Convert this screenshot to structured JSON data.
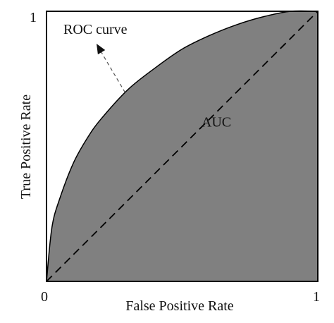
{
  "chart_data": {
    "type": "area",
    "xlabel": "False Positive Rate",
    "ylabel": "True Positive Rate",
    "xlim": [
      0,
      1
    ],
    "ylim": [
      0,
      1
    ],
    "x_ticks": [
      "0",
      "1"
    ],
    "y_ticks": [
      "1"
    ],
    "grid": false,
    "series": [
      {
        "name": "ROC curve",
        "style": "solid",
        "x": [
          0,
          0.02,
          0.05,
          0.1,
          0.15,
          0.2,
          0.3,
          0.4,
          0.5,
          0.6,
          0.7,
          0.8,
          0.9,
          1.0
        ],
        "y": [
          0,
          0.2,
          0.31,
          0.44,
          0.53,
          0.6,
          0.71,
          0.79,
          0.86,
          0.91,
          0.95,
          0.98,
          1.0,
          1.0
        ]
      },
      {
        "style": "dashed",
        "x": [
          0,
          1
        ],
        "y": [
          0,
          1
        ]
      }
    ],
    "annotations": [
      {
        "text": "ROC curve",
        "type": "arrow-label",
        "points_to": [
          0.3,
          0.71
        ]
      },
      {
        "text": "AUC",
        "type": "region-label",
        "at": [
          0.6,
          0.37
        ]
      }
    ],
    "colors": {
      "area_fill": "#808080",
      "curve": "#000000",
      "diagonal": "#000000",
      "frame": "#000000"
    }
  }
}
